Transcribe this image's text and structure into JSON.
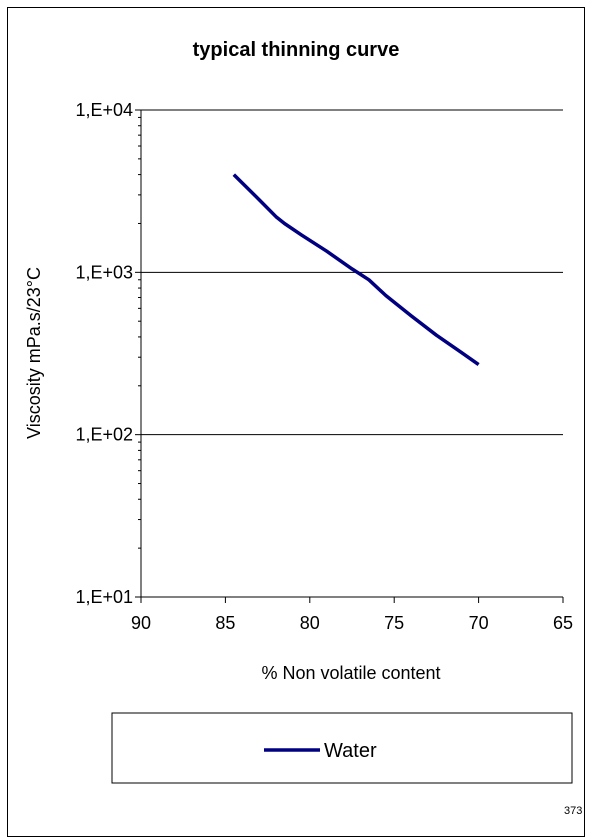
{
  "chart_data": {
    "type": "line",
    "title": "typical thinning curve",
    "xlabel": "% Non volatile content",
    "ylabel": "Viscosity mPa.s/23°C",
    "x_scale": "linear",
    "x_reversed": true,
    "xlim": [
      65,
      90
    ],
    "x_ticks": [
      90,
      85,
      80,
      75,
      70,
      65
    ],
    "y_scale": "log",
    "ylim": [
      10,
      10000
    ],
    "y_ticks": [
      10000,
      1000,
      100,
      10
    ],
    "y_tick_labels": [
      "1,E+04",
      "1,E+03",
      "1,E+02",
      "1,E+01"
    ],
    "grid": "horizontal major lines",
    "legend_position": "bottom",
    "series": [
      {
        "name": "Water",
        "color": "#000080",
        "x": [
          84.5,
          83.0,
          82.0,
          81.5,
          80.5,
          79.0,
          77.5,
          76.5,
          75.5,
          74.0,
          72.5,
          71.0,
          70.0
        ],
        "y": [
          4000,
          2800,
          2200,
          2000,
          1700,
          1350,
          1050,
          900,
          720,
          540,
          410,
          320,
          270
        ]
      }
    ],
    "annotation": "373"
  }
}
